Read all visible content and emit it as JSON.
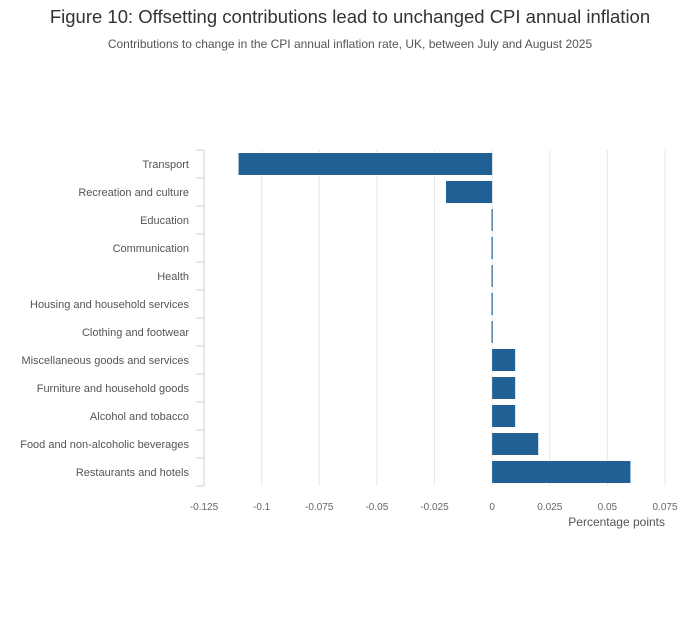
{
  "title": "Figure 10: Offsetting contributions lead to unchanged CPI annual inflation",
  "subtitle": "Contributions to change in the CPI annual inflation rate, UK, between July and August 2025",
  "chart_data": {
    "type": "bar",
    "orientation": "horizontal",
    "categories": [
      "Transport",
      "Recreation and culture",
      "Education",
      "Communication",
      "Health",
      "Housing and household services",
      "Clothing and footwear",
      "Miscellaneous goods and services",
      "Furniture and household goods",
      "Alcohol and tobacco",
      "Food and non-alcoholic beverages",
      "Restaurants and hotels"
    ],
    "values": [
      -0.11,
      -0.02,
      0.0,
      0.0,
      0.0,
      0.0,
      0.0,
      0.01,
      0.01,
      0.01,
      0.02,
      0.06
    ],
    "xlabel": "Percentage points",
    "ylabel": "",
    "xlim": [
      -0.125,
      0.075
    ],
    "xticks": [
      -0.125,
      -0.1,
      -0.075,
      -0.05,
      -0.025,
      0,
      0.025,
      0.05,
      0.075
    ],
    "xtick_labels": [
      "-0.125",
      "-0.1",
      "-0.075",
      "-0.05",
      "-0.025",
      "0",
      "0.025",
      "0.05",
      "0.075"
    ],
    "grid": true,
    "bar_color": "#206095",
    "grid_color": "#e8e8e8"
  }
}
